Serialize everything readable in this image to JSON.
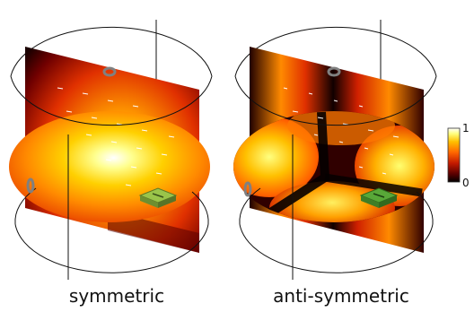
{
  "panels": [
    {
      "label": "symmetric"
    },
    {
      "label": "anti-symmetric"
    }
  ],
  "colorbar": {
    "max_label": "1",
    "min_label": "0",
    "colormap": "hot",
    "stops": [
      "#000000",
      "#5a0000",
      "#c41a00",
      "#ff6600",
      "#ffc000",
      "#ffff80",
      "#ffffff"
    ]
  },
  "colors": {
    "outline": "#111111",
    "ring": "#808080",
    "antenna": "#7aa33a"
  }
}
